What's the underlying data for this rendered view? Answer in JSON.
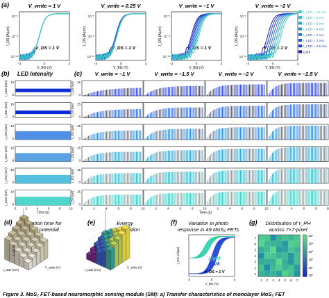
{
  "panel_labels": {
    "a": "(a)",
    "b": "(b)",
    "c": "(c)",
    "d": "(d)",
    "e": "(e)",
    "f": "(f)",
    "g": "(g)"
  },
  "row_a": {
    "titles": [
      "V_write = 1 V",
      "V_write = 0.25 V",
      "V_write = −1 V",
      "V_write = −2 V"
    ],
    "vds_label": "V_DS = 1 V",
    "ylabel": "I_DS (A/μm)",
    "xlabel": "V_BG (V)",
    "xticks": [
      "-3",
      "0",
      "3"
    ],
    "yticks": [
      "10⁻⁵",
      "10⁻⁸",
      "10⁻¹¹"
    ],
    "legend": [
      "I_LED = 10 mA",
      "I_LED = 8 mA",
      "I_LED = 6 mA",
      "I_LED = 4 mA",
      "I_LED = 2 mA",
      "I_LED = 1 mA",
      "I_LED = 0.5 mA",
      "Dark"
    ],
    "legend_colors": [
      "#3fd1c0",
      "#33b9c4",
      "#2b9fcb",
      "#2785cf",
      "#246bd3",
      "#2150d6",
      "#1d36d9",
      "#1a1aa0"
    ]
  },
  "panel_b": {
    "title": "LED Intensity",
    "ylabel": "I_LED (mA)",
    "xlabel": "Time (s)",
    "xticks": [
      "0",
      "2",
      "4",
      "6",
      "8",
      "10"
    ],
    "yticks": [
      "10",
      "0"
    ],
    "bar_colors": [
      "#0a2bd6",
      "#0a2bd6",
      "#4f8fe6",
      "#5aa2e2",
      "#55bfe0",
      "#4fd5cc"
    ]
  },
  "panel_c": {
    "titles": [
      "V_write = −1 V",
      "V_write = −1.5 V",
      "V_write = −2 V",
      "V_write = −2.5 V"
    ],
    "ylabel": "I_DS (nA)",
    "xlabel": "Time (s)",
    "xticks": [
      "0",
      "2",
      "4",
      "6",
      "8",
      "10"
    ],
    "yticks": [
      "15",
      "0"
    ],
    "row_colors": [
      "#1a2fd0",
      "#1d52d6",
      "#2579d2",
      "#2b94c9",
      "#30aec3",
      "#37c3b9"
    ]
  },
  "bottom": {
    "d": {
      "title_lines": [
        "Saturation time for",
        "graded potential"
      ],
      "zlabel": "τ_sat (s)",
      "xlabel": "I_LED (mA)",
      "ylabel": "V_write (V)"
    },
    "e": {
      "title_lines": [
        "Energy",
        "consumption"
      ],
      "zlabel": "E (nJ)",
      "xlabel": "I_LED (mA)",
      "ylabel": "V_write (V)"
    },
    "f": {
      "title_lines": [
        "Variation in photo",
        "response in 49 MoS₂ FETs"
      ],
      "light_label": "Light",
      "dark_label": "Dark",
      "vds_label": "V_DS = 1 V",
      "ylabel": "I_DS (A/μm)",
      "xlabel": "V_BG (V)",
      "xticks": [
        "-3",
        "0",
        "3"
      ]
    },
    "g": {
      "title_lines": [
        "Distribution of τ_PH",
        "across 7×7-pixel"
      ],
      "xticks": [
        "1",
        "2",
        "3",
        "4",
        "5",
        "6",
        "7"
      ],
      "yticks": [
        "7",
        "6",
        "5",
        "4",
        "3",
        "2",
        "1"
      ],
      "colorbar_ticks": [
        "10⁵",
        "10⁴",
        "10³",
        "10²",
        "10¹",
        "10⁰"
      ]
    }
  },
  "caption": "Figure 3. MoS₂ FET-based neuromorphic sensing module (SM): a) Transfer characteristics of monolayer MoS₂ FET"
}
